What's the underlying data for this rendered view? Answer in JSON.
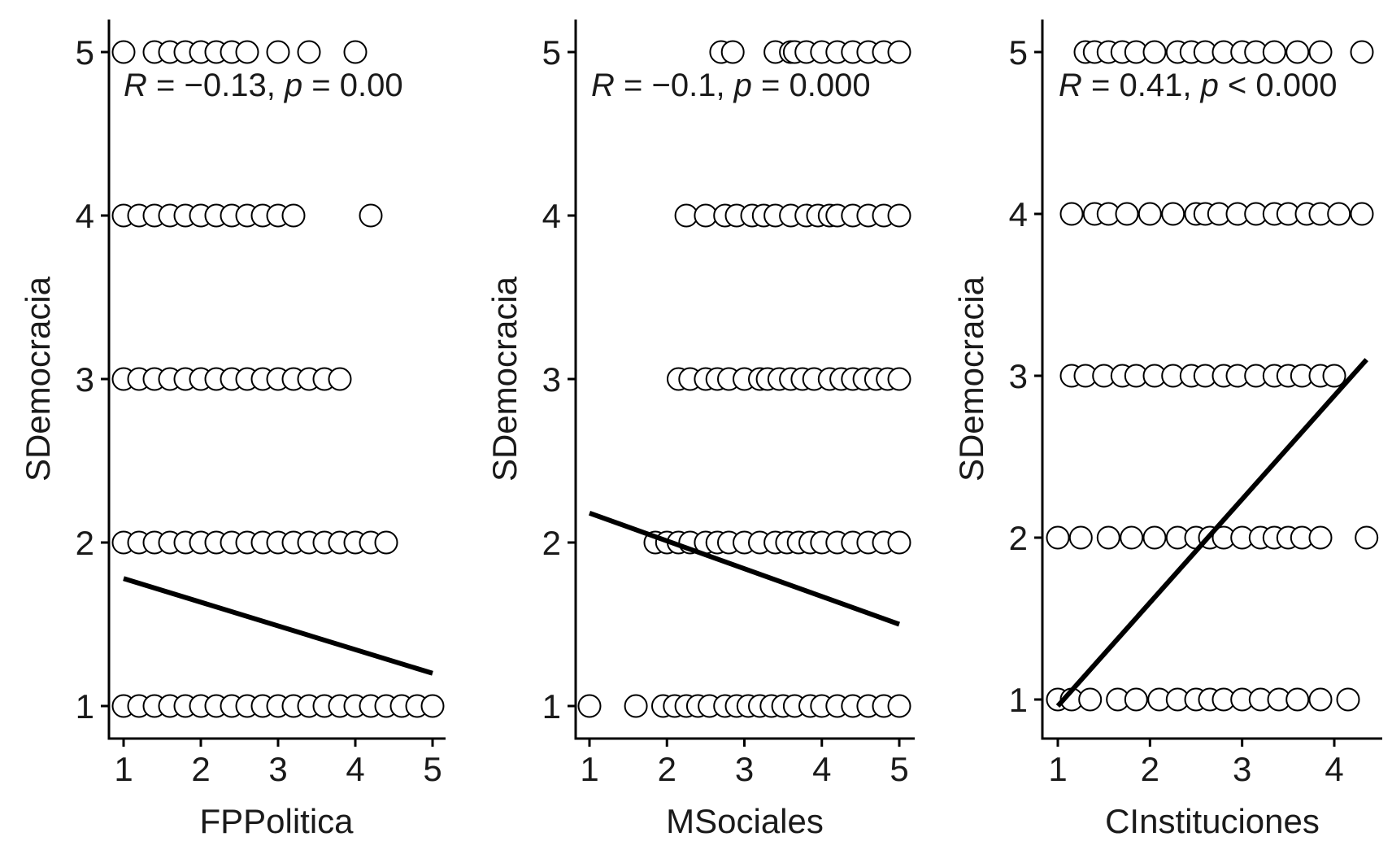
{
  "colors": {
    "ink": "#000000",
    "point_fill": "#ffffff",
    "point_stroke": "#000000",
    "background": "#ffffff"
  },
  "chart_data": [
    {
      "type": "scatter",
      "xlabel": "FPPolitica",
      "ylabel": "SDemocracia",
      "x_ticks": [
        "1",
        "2",
        "3",
        "4",
        "5"
      ],
      "y_ticks": [
        "1",
        "2",
        "3",
        "4",
        "5"
      ],
      "xlim": [
        0.8,
        5.2
      ],
      "ylim": [
        0.8,
        5.2
      ],
      "annotation": {
        "R": "R",
        "r_text": " = −0.13, ",
        "p": "p",
        "p_text": " = 0.00"
      },
      "points": {
        "5": [
          1,
          1.4,
          1.6,
          1.8,
          2.0,
          2.2,
          2.4,
          2.6,
          3.0,
          3.4,
          4.0
        ],
        "4": [
          1,
          1.2,
          1.4,
          1.6,
          1.8,
          2.0,
          2.2,
          2.4,
          2.6,
          2.8,
          3.0,
          3.2,
          4.2
        ],
        "3": [
          1,
          1.2,
          1.4,
          1.6,
          1.8,
          2.0,
          2.2,
          2.4,
          2.6,
          2.8,
          3.0,
          3.2,
          3.4,
          3.6,
          3.8
        ],
        "2": [
          1,
          1.2,
          1.4,
          1.6,
          1.8,
          2.0,
          2.2,
          2.4,
          2.6,
          2.8,
          3.0,
          3.2,
          3.4,
          3.6,
          3.8,
          4.0,
          4.2,
          4.4
        ],
        "1": [
          1,
          1.2,
          1.4,
          1.6,
          1.8,
          2.0,
          2.2,
          2.4,
          2.6,
          2.8,
          3.0,
          3.2,
          3.4,
          3.6,
          3.8,
          4.0,
          4.2,
          4.4,
          4.6,
          4.8,
          5.0
        ]
      },
      "regression": {
        "x": [
          1,
          5
        ],
        "y": [
          1.78,
          1.2
        ]
      }
    },
    {
      "type": "scatter",
      "xlabel": "MSociales",
      "ylabel": "SDemocracia",
      "x_ticks": [
        "1",
        "2",
        "3",
        "4",
        "5"
      ],
      "y_ticks": [
        "1",
        "2",
        "3",
        "4",
        "5"
      ],
      "xlim": [
        0.8,
        5.2
      ],
      "ylim": [
        0.8,
        5.2
      ],
      "annotation": {
        "R": "R",
        "r_text": " = −0.1, ",
        "p": "p",
        "p_text": " = 0.000"
      },
      "points": {
        "5": [
          2.7,
          2.85,
          3.4,
          3.6,
          3.65,
          3.8,
          4.0,
          4.2,
          4.4,
          4.6,
          4.8,
          5.0
        ],
        "4": [
          2.25,
          2.5,
          2.75,
          2.9,
          3.1,
          3.25,
          3.4,
          3.6,
          3.8,
          3.95,
          4.1,
          4.2,
          4.4,
          4.6,
          4.8,
          5.0
        ],
        "3": [
          2.15,
          2.3,
          2.5,
          2.65,
          2.8,
          3.0,
          3.2,
          3.3,
          3.45,
          3.6,
          3.75,
          3.9,
          4.1,
          4.25,
          4.4,
          4.55,
          4.7,
          4.85,
          5.0
        ],
        "2": [
          1.85,
          2.0,
          2.15,
          2.3,
          2.5,
          2.65,
          2.8,
          3.0,
          3.2,
          3.4,
          3.55,
          3.7,
          3.85,
          4.0,
          4.2,
          4.4,
          4.6,
          4.8,
          5.0
        ],
        "1": [
          1.0,
          1.6,
          1.95,
          2.1,
          2.25,
          2.4,
          2.55,
          2.75,
          2.9,
          3.05,
          3.2,
          3.35,
          3.5,
          3.65,
          3.85,
          4.0,
          4.2,
          4.4,
          4.6,
          4.8,
          5.0
        ]
      },
      "regression": {
        "x": [
          1,
          5
        ],
        "y": [
          2.18,
          1.5
        ]
      }
    },
    {
      "type": "scatter",
      "xlabel": "CInstituciones",
      "ylabel": "SDemocracia",
      "x_ticks": [
        "1",
        "2",
        "3",
        "4"
      ],
      "y_ticks": [
        "1",
        "2",
        "3",
        "4",
        "5"
      ],
      "xlim": [
        0.85,
        4.5
      ],
      "ylim": [
        0.8,
        5.2
      ],
      "annotation": {
        "R": "R",
        "r_text": " = 0.41, ",
        "p": "p",
        "p_text": " < 0.000"
      },
      "points": {
        "5": [
          1.3,
          1.4,
          1.55,
          1.7,
          1.85,
          2.05,
          2.3,
          2.45,
          2.6,
          2.8,
          3.0,
          3.15,
          3.35,
          3.6,
          3.85,
          4.3
        ],
        "4": [
          1.15,
          1.4,
          1.55,
          1.75,
          2.0,
          2.25,
          2.5,
          2.6,
          2.75,
          2.95,
          3.15,
          3.35,
          3.5,
          3.7,
          3.85,
          4.05,
          4.3
        ],
        "3": [
          1.15,
          1.3,
          1.5,
          1.7,
          1.85,
          2.05,
          2.25,
          2.45,
          2.6,
          2.8,
          2.95,
          3.15,
          3.35,
          3.5,
          3.65,
          3.85,
          4.0
        ],
        "2": [
          1.0,
          1.25,
          1.55,
          1.8,
          2.05,
          2.3,
          2.5,
          2.65,
          2.8,
          3.0,
          3.2,
          3.35,
          3.5,
          3.65,
          3.85,
          4.35
        ],
        "1": [
          1.0,
          1.15,
          1.35,
          1.65,
          1.85,
          2.1,
          2.3,
          2.5,
          2.65,
          2.8,
          3.0,
          3.2,
          3.4,
          3.6,
          3.85,
          4.15
        ]
      },
      "regression": {
        "x": [
          1,
          4.35
        ],
        "y": [
          0.96,
          3.1
        ]
      }
    }
  ]
}
